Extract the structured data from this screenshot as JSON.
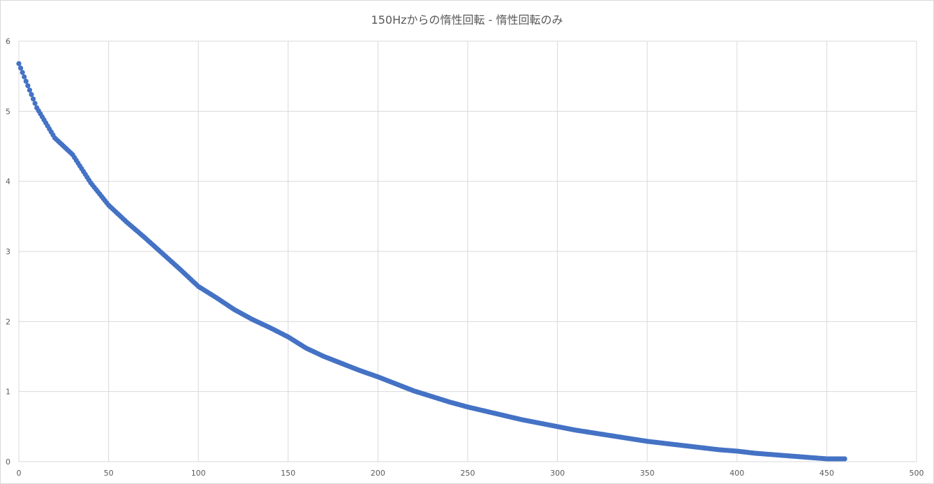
{
  "chart_data": {
    "type": "scatter",
    "title": "150Hzからの惰性回転 - 惰性回転のみ",
    "xlabel": "",
    "ylabel": "",
    "xlim": [
      0,
      500
    ],
    "ylim": [
      0,
      6
    ],
    "x_ticks": [
      0,
      50,
      100,
      150,
      200,
      250,
      300,
      350,
      400,
      450,
      500
    ],
    "y_ticks": [
      0,
      1,
      2,
      3,
      4,
      5,
      6
    ],
    "grid": true,
    "legend": "none",
    "marker_color": "#4472c4",
    "series": [
      {
        "x": [
          0,
          10,
          20,
          30,
          40,
          50,
          60,
          70,
          80,
          90,
          100,
          110,
          120,
          130,
          140,
          150,
          160,
          170,
          180,
          190,
          200,
          210,
          220,
          230,
          240,
          250,
          260,
          270,
          280,
          290,
          300,
          310,
          320,
          330,
          340,
          350,
          360,
          370,
          380,
          390,
          400,
          410,
          420,
          430,
          440,
          450,
          460
        ],
        "y": [
          5.68,
          5.05,
          4.62,
          4.38,
          3.98,
          3.66,
          3.42,
          3.2,
          2.97,
          2.74,
          2.5,
          2.34,
          2.17,
          2.03,
          1.91,
          1.78,
          1.62,
          1.5,
          1.4,
          1.3,
          1.21,
          1.11,
          1.01,
          0.93,
          0.85,
          0.78,
          0.72,
          0.66,
          0.6,
          0.55,
          0.5,
          0.45,
          0.41,
          0.37,
          0.33,
          0.29,
          0.26,
          0.23,
          0.2,
          0.17,
          0.15,
          0.12,
          0.1,
          0.08,
          0.06,
          0.04,
          0.04
        ]
      }
    ]
  }
}
